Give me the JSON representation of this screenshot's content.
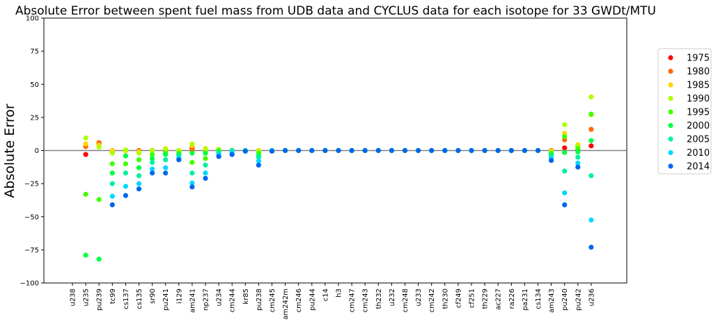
{
  "chart_data": {
    "type": "scatter",
    "title": "Absolute Error between spent fuel mass from UDB data and CYCLUS data for each isotope for 33 GWDt/MTU",
    "xlabel": "",
    "ylabel": "Absolute Error",
    "ylim": [
      -100,
      100
    ],
    "yticks": [
      100,
      75,
      50,
      25,
      0,
      -25,
      -50,
      -75,
      -100
    ],
    "zero_line": 0,
    "grid": false,
    "legend_position": "right",
    "categories": [
      "u238",
      "u235",
      "pu239",
      "tc99",
      "cs137",
      "cs135",
      "sr90",
      "pu241",
      "i129",
      "am241",
      "np237",
      "u234",
      "cm244",
      "kr85",
      "pu238",
      "cm245",
      "am242m",
      "cm246",
      "pu244",
      "c14",
      "h3",
      "cm247",
      "cm243",
      "th232",
      "u232",
      "cm248",
      "u233",
      "cm242",
      "th230",
      "cf249",
      "cf251",
      "th229",
      "ac227",
      "ra226",
      "pa231",
      "cs134",
      "am243",
      "pu240",
      "pu242",
      "u236"
    ],
    "series": [
      {
        "name": "1975",
        "color": "#ff0000",
        "values": [
          null,
          -3,
          5,
          -1,
          0,
          0,
          0,
          0,
          0,
          2,
          0,
          0,
          0,
          0,
          0,
          0,
          0,
          0,
          0,
          0,
          0,
          0,
          0,
          0,
          0,
          0,
          0,
          0,
          0,
          0,
          0,
          0,
          0,
          0,
          0,
          0,
          0,
          2,
          1,
          3.5
        ]
      },
      {
        "name": "1980",
        "color": "#ff6a00",
        "values": [
          null,
          3,
          6,
          0,
          0,
          0,
          0,
          0,
          0,
          0,
          0,
          0,
          0,
          0,
          0,
          0,
          0,
          0,
          0,
          0,
          0,
          0,
          0,
          0,
          0,
          0,
          0,
          0,
          0,
          0,
          0,
          0,
          0,
          0,
          0,
          0,
          0,
          8,
          3,
          16
        ]
      },
      {
        "name": "1985",
        "color": "#ffd500",
        "values": [
          null,
          5,
          4,
          0,
          0,
          -1,
          0,
          1.5,
          0,
          3.5,
          1.5,
          0.5,
          0,
          0,
          0,
          0,
          0,
          0,
          0,
          0,
          0,
          0,
          0,
          0,
          0,
          0,
          0,
          0,
          0,
          0,
          0,
          0,
          0,
          0,
          0,
          0,
          -0.5,
          13,
          4.5,
          27
        ]
      },
      {
        "name": "1990",
        "color": "#b0ff00",
        "values": [
          null,
          9.5,
          2.5,
          -2,
          0.5,
          -2,
          0,
          1,
          0,
          5,
          1,
          1,
          0,
          0,
          -0.5,
          0,
          0,
          0,
          0,
          0,
          0,
          0,
          0,
          0,
          0,
          0,
          0,
          0,
          0,
          0,
          0,
          0,
          0,
          0,
          0,
          0,
          -1,
          19.5,
          3,
          40.5
        ]
      },
      {
        "name": "1995",
        "color": "#40ff00",
        "values": [
          null,
          -33,
          -37,
          -10,
          -10,
          -7,
          -3,
          -2,
          -2,
          -9,
          -6,
          0,
          0,
          0,
          -2,
          0,
          0,
          0,
          0,
          0,
          0,
          0,
          0,
          0,
          0,
          0,
          0,
          0,
          0,
          0,
          0,
          0,
          0,
          0,
          0,
          0,
          -2,
          10.5,
          1.5,
          27.5
        ]
      },
      {
        "name": "2000",
        "color": "#00ff40",
        "values": [
          null,
          -79,
          -82,
          -17,
          -4,
          -13,
          -6,
          -3,
          -3,
          -2,
          -2,
          -1,
          -0.5,
          0,
          -4,
          0,
          0,
          0,
          0,
          0,
          0,
          0,
          0,
          0,
          0,
          0,
          0,
          0,
          0,
          0,
          0,
          0,
          0,
          0,
          0,
          0,
          -3,
          -1.5,
          -1,
          7.5
        ]
      },
      {
        "name": "2005",
        "color": "#00f0a0",
        "values": [
          null,
          null,
          null,
          -25,
          -17,
          -19,
          -9,
          -7,
          -4,
          -17,
          -11,
          -2,
          0,
          0,
          -5,
          0,
          0,
          0,
          0,
          0,
          0,
          0,
          0,
          0,
          0,
          0,
          0,
          0,
          0,
          0,
          0,
          0,
          0,
          0,
          0,
          0,
          -4,
          -15.5,
          -5,
          -19
        ]
      },
      {
        "name": "2010",
        "color": "#00d8ff",
        "values": [
          null,
          null,
          null,
          -34.5,
          -27,
          -25,
          -14,
          -13,
          -6,
          -24.5,
          -17,
          -3,
          -1.5,
          0,
          -8,
          0,
          0,
          0,
          0,
          0,
          0,
          0,
          0,
          0,
          0,
          0,
          0,
          0,
          0,
          0,
          0,
          0,
          0,
          0,
          0,
          0,
          -6,
          -32,
          -9.5,
          -52.5
        ]
      },
      {
        "name": "2014",
        "color": "#0066ee",
        "values": [
          null,
          null,
          null,
          -41,
          -34,
          -29,
          -17,
          -17,
          -7,
          -27.5,
          -21,
          -4.5,
          -3,
          -0.5,
          -11,
          -0.5,
          0,
          0,
          0,
          0,
          0,
          0,
          0,
          0,
          0,
          0,
          0,
          0,
          0,
          0,
          0,
          0,
          0,
          0,
          0,
          0,
          -7.5,
          -41,
          -12.5,
          -73
        ]
      }
    ]
  }
}
